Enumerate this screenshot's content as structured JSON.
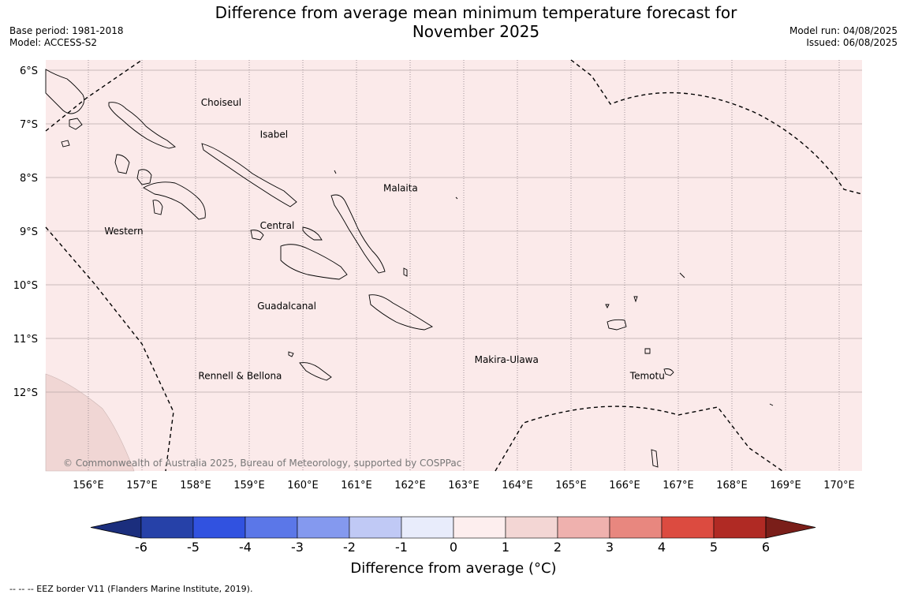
{
  "header": {
    "title_line1": "Difference from average mean minimum temperature forecast for",
    "title_line2": "November 2025",
    "base_period": "Base period: 1981-2018",
    "model": "Model: ACCESS-S2",
    "model_run": "Model run: 04/08/2025",
    "issued": "Issued: 06/08/2025"
  },
  "map": {
    "background_color": "#fbeaea",
    "warm_patch_color": "#f0d6d4",
    "lat_labels": [
      "6°S",
      "7°S",
      "8°S",
      "9°S",
      "10°S",
      "11°S",
      "12°S"
    ],
    "lon_labels": [
      "156°E",
      "157°E",
      "158°E",
      "159°E",
      "160°E",
      "161°E",
      "162°E",
      "163°E",
      "164°E",
      "165°E",
      "166°E",
      "167°E",
      "168°E",
      "169°E",
      "170°E"
    ],
    "regions": [
      {
        "name": "Choiseul",
        "lon": 158.1,
        "lat": -6.6
      },
      {
        "name": "Isabel",
        "lon": 159.2,
        "lat": -7.2
      },
      {
        "name": "Malaita",
        "lon": 161.5,
        "lat": -8.2
      },
      {
        "name": "Western",
        "lon": 156.3,
        "lat": -9.0
      },
      {
        "name": "Central",
        "lon": 159.2,
        "lat": -8.9
      },
      {
        "name": "Guadalcanal",
        "lon": 159.15,
        "lat": -10.4
      },
      {
        "name": "Makira-Ulawa",
        "lon": 163.2,
        "lat": -11.4
      },
      {
        "name": "Rennell & Bellona",
        "lon": 158.05,
        "lat": -11.7
      },
      {
        "name": "Temotu",
        "lon": 166.1,
        "lat": -11.7
      }
    ],
    "copyright": "© Commonwealth of Australia 2025, Bureau of Meteorology, supported by COSPPac"
  },
  "colorbar": {
    "ticks": [
      "-6",
      "-5",
      "-4",
      "-3",
      "-2",
      "-1",
      "0",
      "1",
      "2",
      "3",
      "4",
      "5",
      "6"
    ],
    "colors": [
      "#2641a8",
      "#3152e0",
      "#5b77e8",
      "#8499ef",
      "#c0c9f5",
      "#e8ecfb",
      "#fdeeee",
      "#f3d6d4",
      "#efb1ae",
      "#e8877f",
      "#dc4b40",
      "#b02a24"
    ],
    "low_extend_color": "#1b2e7d",
    "high_extend_color": "#7a1e19",
    "label": "Difference from average (°C)"
  },
  "legend": {
    "eez_note": "--  --  -- EEZ border V11 (Flanders Marine Institute, 2019)."
  }
}
